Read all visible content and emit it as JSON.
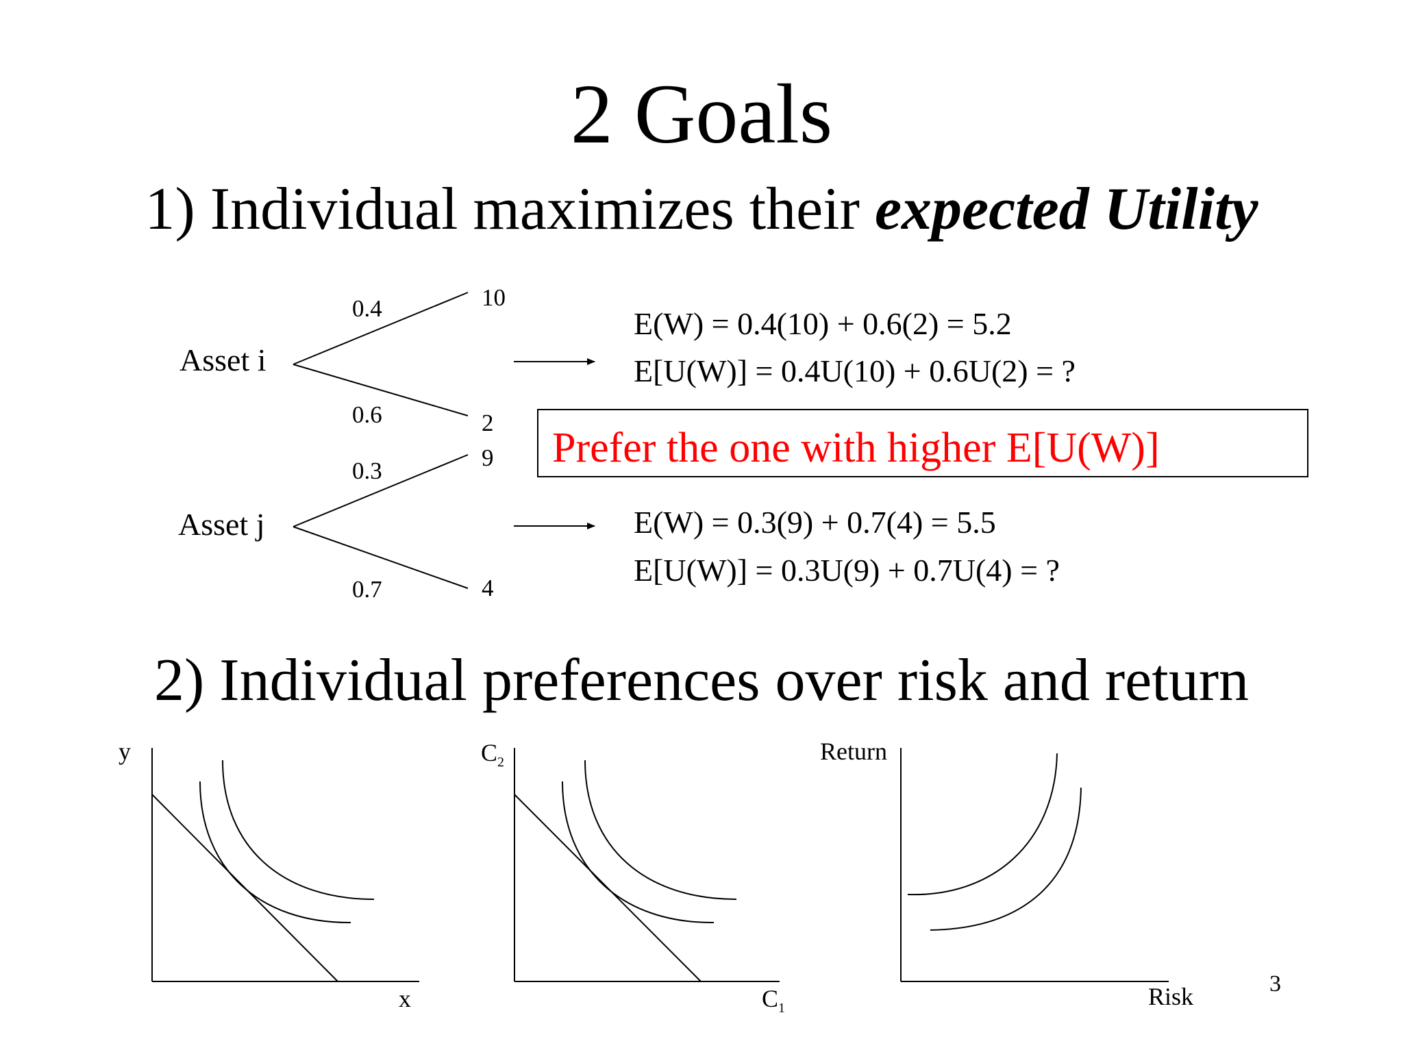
{
  "slide": {
    "title": "2 Goals",
    "page_number": "3"
  },
  "goal1": {
    "prefix": "1) Individual maximizes their ",
    "emphasis": "expected Utility"
  },
  "asset_i": {
    "label": "Asset i",
    "prob_up": "0.4",
    "prob_down": "0.6",
    "outcome_up": "10",
    "outcome_down": "2",
    "expected_wealth": "E(W) = 0.4(10) + 0.6(2) = 5.2",
    "expected_utility": "E[U(W)] = 0.4U(10) + 0.6U(2) = ?"
  },
  "asset_j": {
    "label": "Asset j",
    "prob_up": "0.3",
    "prob_down": "0.7",
    "outcome_up": "9",
    "outcome_down": "4",
    "expected_wealth": "E(W) = 0.3(9) + 0.7(4) = 5.5",
    "expected_utility": "E[U(W)] = 0.3U(9) + 0.7U(4) = ?"
  },
  "preference_note": {
    "text": "Prefer the one with higher E[U(W)]",
    "color": "#ff0000"
  },
  "goal2": {
    "text": "2) Individual preferences over risk and return"
  },
  "graphs": [
    {
      "y_label": "y",
      "x_label": "x"
    },
    {
      "y_label": "C",
      "y_sub": "2",
      "x_label": "C",
      "x_sub": "1"
    },
    {
      "y_label": "Return",
      "x_label": "Risk"
    }
  ]
}
